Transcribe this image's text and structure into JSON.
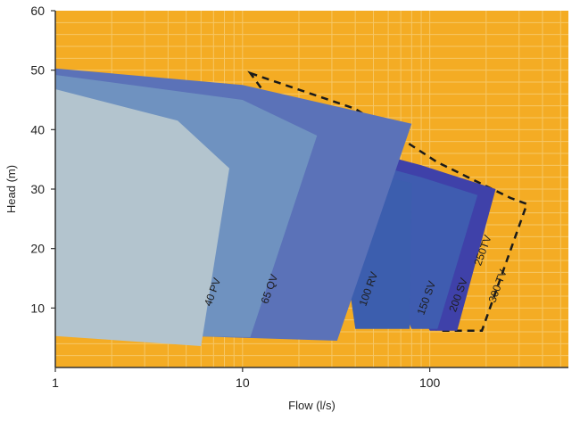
{
  "chart_data": {
    "type": "area",
    "title": "",
    "xlabel": "Flow (l/s)",
    "ylabel": "Head (m)",
    "x_scale": "log",
    "xlim": [
      1,
      550
    ],
    "ylim": [
      0,
      60
    ],
    "x_ticks": [
      1,
      10,
      100
    ],
    "x_tick_labels": [
      "1",
      "10",
      "100"
    ],
    "y_ticks": [
      10,
      20,
      30,
      40,
      50,
      60
    ],
    "y_tick_labels": [
      "10",
      "20",
      "30",
      "40",
      "50",
      "60"
    ],
    "grid": true,
    "colors": {
      "background": "#f4ac24",
      "grid": "#f6c766",
      "axis": "#333333"
    },
    "series": [
      {
        "name": "300 TV",
        "color": "none",
        "style": "dashed",
        "label_at": [
          240,
          13.5
        ],
        "label_rotation": -70,
        "points": [
          [
            11,
            49.5
          ],
          [
            40,
            43.5
          ],
          [
            110,
            34.5
          ],
          [
            270,
            28.5
          ],
          [
            330,
            27.5
          ],
          [
            190,
            6.2
          ],
          [
            110,
            6.2
          ]
        ]
      },
      {
        "name": "250TV",
        "color": "#3f41a9",
        "label_at": [
          200,
          19.5
        ],
        "label_rotation": -70,
        "points": [
          [
            30,
            38
          ],
          [
            90,
            34
          ],
          [
            225,
            30
          ],
          [
            140,
            6.2
          ],
          [
            100,
            6.2
          ]
        ]
      },
      {
        "name": "200 SV",
        "color": "#3f5cb0",
        "label_at": [
          148,
          12
        ],
        "label_rotation": -70,
        "points": [
          [
            30,
            36
          ],
          [
            90,
            32
          ],
          [
            180,
            29
          ],
          [
            110,
            6.5
          ],
          [
            80,
            6.5
          ]
        ]
      },
      {
        "name": "150 SV",
        "color": "#3c5eae",
        "label_at": [
          100,
          11.5
        ],
        "label_rotation": -70,
        "points": [
          [
            30,
            34
          ],
          [
            80,
            31
          ],
          [
            78,
            6.5
          ],
          [
            40,
            6.5
          ]
        ]
      },
      {
        "name": "100 RV",
        "color": "#5b72b8",
        "label_at": [
          49,
          13
        ],
        "label_rotation": -70,
        "points": [
          [
            1,
            50.3
          ],
          [
            10,
            47.5
          ],
          [
            80,
            41
          ],
          [
            32,
            4.5
          ],
          [
            1,
            6
          ]
        ]
      },
      {
        "name": "65 QV",
        "color": "#6f92c0",
        "label_at": [
          14.5,
          13
        ],
        "label_rotation": -70,
        "points": [
          [
            1,
            49.2
          ],
          [
            10,
            45
          ],
          [
            25,
            39
          ],
          [
            11,
            5.1
          ],
          [
            1,
            5.6
          ]
        ]
      },
      {
        "name": "40 PV",
        "color": "#b3c4ce",
        "label_at": [
          7.2,
          12.5
        ],
        "label_rotation": -70,
        "points": [
          [
            1,
            46.8
          ],
          [
            4.5,
            41.5
          ],
          [
            8.5,
            33.5
          ],
          [
            6,
            3.6
          ],
          [
            1,
            5.3
          ]
        ]
      }
    ]
  }
}
